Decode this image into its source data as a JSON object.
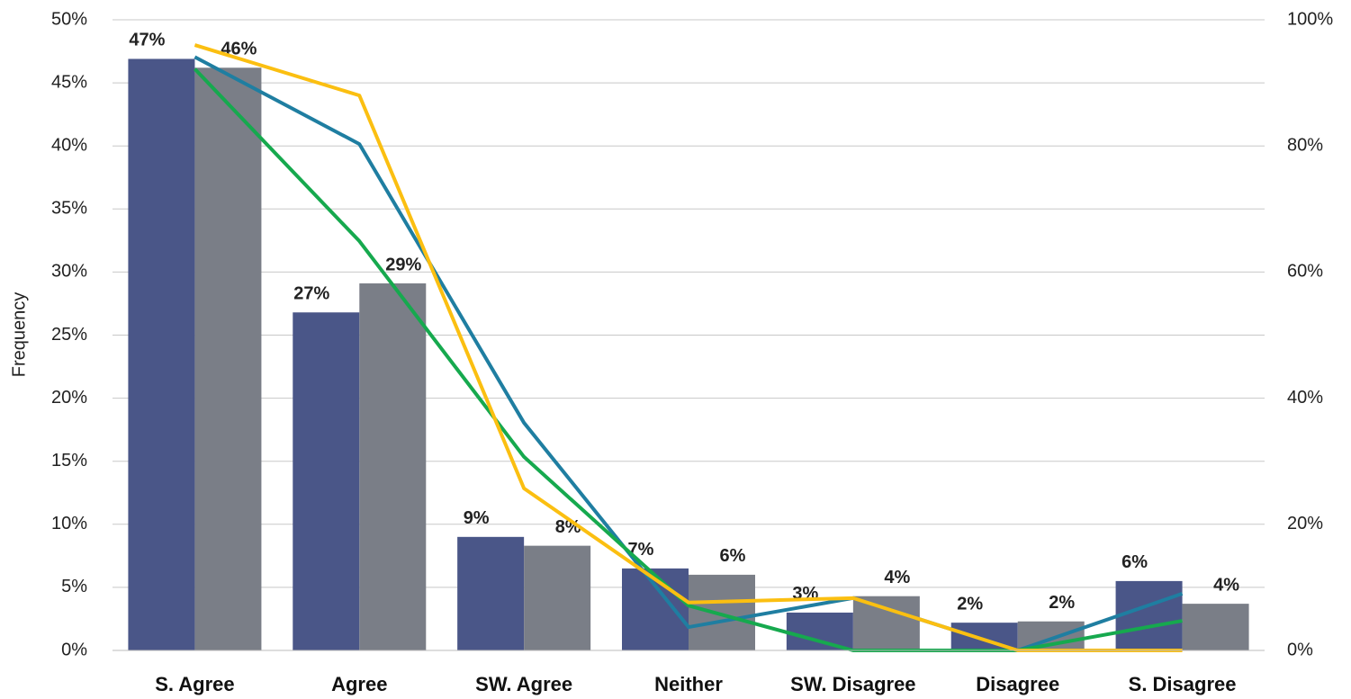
{
  "chart_data": {
    "type": "bar_line",
    "y_label": "Frequency",
    "categories": [
      "S. Agree",
      "Agree",
      "SW. Agree",
      "Neither",
      "SW. Disagree",
      "Disagree",
      "S. Disagree"
    ],
    "series": [
      {
        "color": "#4a5688",
        "values": [
          46.9,
          26.8,
          9.0,
          6.5,
          3.0,
          2.2,
          5.5
        ],
        "value_labels": [
          "47%",
          "27%",
          "9%",
          "7%",
          "3%",
          "2%",
          "6%"
        ]
      },
      {
        "color": "#7a7e87",
        "values": [
          46.2,
          29.1,
          8.3,
          6.0,
          4.3,
          2.3,
          3.7
        ],
        "value_labels": [
          "46%",
          "29%",
          "8%",
          "6%",
          "4%",
          "2%",
          "4%"
        ]
      },
      {
        "color": "#1f7ea1",
        "axis": "y2",
        "kind": "line",
        "values": [
          94.1,
          80.3,
          36.1,
          3.7,
          8.3,
          0,
          9.0
        ]
      },
      {
        "color": "#16a94e",
        "axis": "y2",
        "kind": "line",
        "values": [
          92.2,
          64.9,
          30.7,
          7.1,
          0,
          0,
          4.7
        ]
      },
      {
        "color": "#fbbf11",
        "axis": "y2",
        "kind": "line",
        "values": [
          96.0,
          88.0,
          25.7,
          7.6,
          8.3,
          0,
          0
        ]
      }
    ],
    "ylim": [
      0,
      50
    ],
    "yticks": [
      {
        "value": 0,
        "label": "0%"
      },
      {
        "value": 5,
        "label": "5%"
      },
      {
        "value": 10,
        "label": "10%"
      },
      {
        "value": 15,
        "label": "15%"
      },
      {
        "value": 20,
        "label": "20%"
      },
      {
        "value": 25,
        "label": "25%"
      },
      {
        "value": 30,
        "label": "30%"
      },
      {
        "value": 35,
        "label": "35%"
      },
      {
        "value": 40,
        "label": "40%"
      },
      {
        "value": 45,
        "label": "45%"
      },
      {
        "value": 50,
        "label": "50%"
      }
    ],
    "y2lim": [
      0,
      100
    ],
    "y2ticks": [
      {
        "value": 0,
        "label": "0%"
      },
      {
        "value": 20,
        "label": "20%"
      },
      {
        "value": 40,
        "label": "40%"
      },
      {
        "value": 60,
        "label": "60%"
      },
      {
        "value": 80,
        "label": "80%"
      },
      {
        "value": 100,
        "label": "100%"
      }
    ],
    "grid": true
  }
}
